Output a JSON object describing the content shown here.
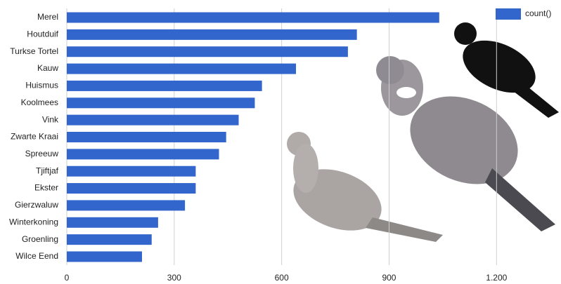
{
  "chart_data": {
    "type": "barh",
    "categories": [
      "Merel",
      "Houtduif",
      "Turkse Tortel",
      "Kauw",
      "Huismus",
      "Koolmees",
      "Vink",
      "Zwarte Kraai",
      "Spreeuw",
      "Tjiftjaf",
      "Ekster",
      "Gierzwaluw",
      "Winterkoning",
      "Groenling",
      "Wilce Eend"
    ],
    "series": [
      {
        "name": "count()",
        "color": "#3366cc",
        "values": [
          1040,
          810,
          785,
          640,
          545,
          525,
          480,
          445,
          425,
          360,
          360,
          330,
          255,
          237,
          210
        ]
      }
    ],
    "xlim": [
      0,
      1380
    ],
    "xticks": [
      0,
      300,
      600,
      900,
      {
        "value": 1200,
        "label": "1.200"
      }
    ],
    "grid": true,
    "legend": "top-right"
  }
}
